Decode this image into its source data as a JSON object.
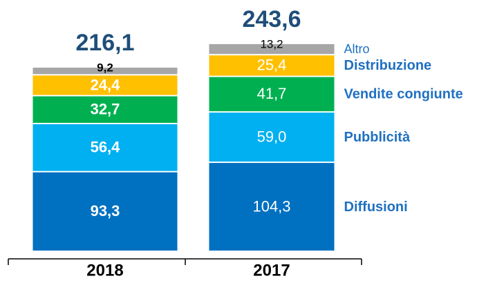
{
  "chart_data": {
    "type": "bar",
    "stacked": true,
    "categories": [
      "2018",
      "2017"
    ],
    "series": [
      {
        "name": "Diffusioni",
        "color": "#0070c0",
        "values": [
          93.3,
          104.3
        ],
        "value_labels": [
          "93,3",
          "104,3"
        ]
      },
      {
        "name": "Pubblicità",
        "color": "#00b0f0",
        "values": [
          56.4,
          59.0
        ],
        "value_labels": [
          "56,4",
          "59,0"
        ]
      },
      {
        "name": "Vendite congiunte",
        "color": "#00b050",
        "values": [
          32.7,
          41.7
        ],
        "value_labels": [
          "32,7",
          "41,7"
        ]
      },
      {
        "name": "Distribuzione",
        "color": "#ffc000",
        "values": [
          24.4,
          25.4
        ],
        "value_labels": [
          "24,4",
          "25,4"
        ]
      },
      {
        "name": "Altro",
        "color": "#a6a6a6",
        "values": [
          9.2,
          13.2
        ],
        "value_labels": [
          "9,2",
          "13,2"
        ]
      }
    ],
    "totals": [
      216.1,
      243.6
    ],
    "total_labels": [
      "216,1",
      "243,6"
    ],
    "ylim": [
      0,
      250
    ]
  }
}
